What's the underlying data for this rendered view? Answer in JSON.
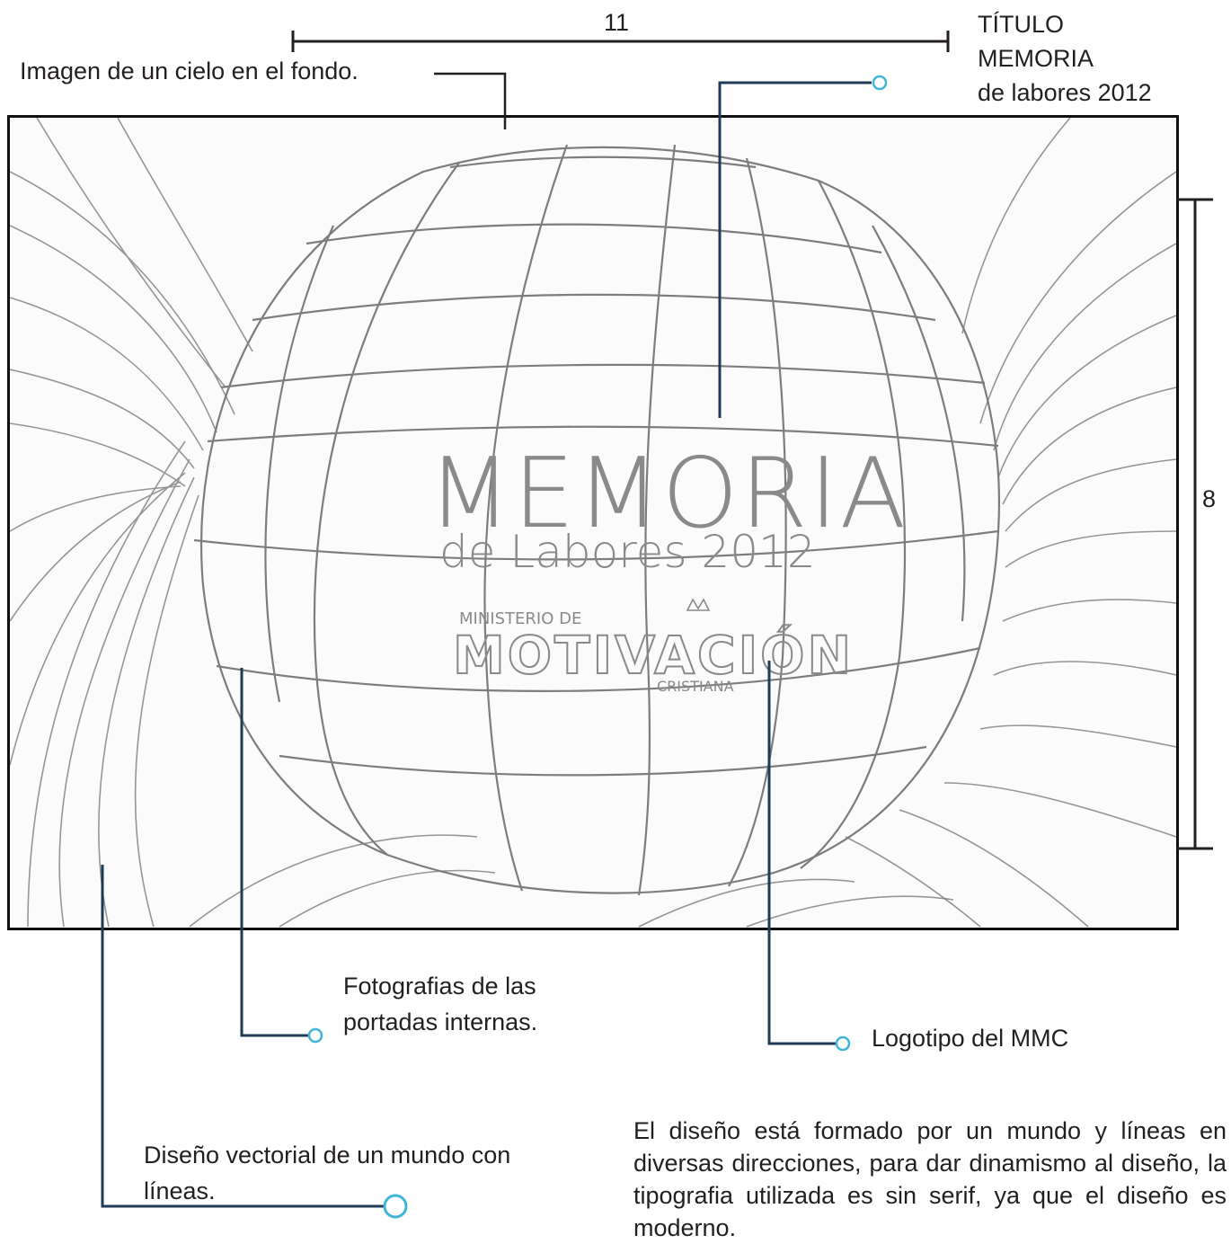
{
  "dimensions": {
    "width_label": "11",
    "height_label": "8"
  },
  "annotations": {
    "title_label": [
      "TÍTULO",
      "MEMORIA",
      "de labores 2012"
    ],
    "sky_background": "Imagen de un cielo en el fondo.",
    "photos": [
      "Fotografias de las",
      "portadas internas."
    ],
    "logo": "Logotipo del MMC",
    "vector_world": [
      "Diseño vectorial de un mundo con",
      "líneas."
    ],
    "description": "El diseño está formado por un mundo y líneas en diversas direcciones, para dar dinamismo al diseño, la tipografia utilizada es sin serif, ya que el diseño es moderno."
  },
  "sketch": {
    "title_main": "MEMORIA",
    "title_sub": "de Labores 2012",
    "logo_top": "MINISTERIO DE",
    "logo_main": "MOTIVACIÓN",
    "logo_bottom": "CRISTIANA"
  },
  "colors": {
    "leader_line": "#1f3b57",
    "leader_dot": "#3fb6d6",
    "dimension_line": "#231f20",
    "pencil": "#8a8a8a"
  }
}
